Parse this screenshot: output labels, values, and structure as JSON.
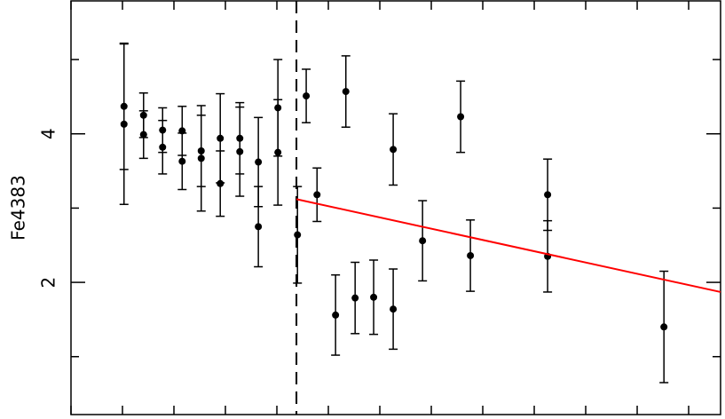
{
  "chart_data": {
    "type": "scatter",
    "y_label": "Fe4383",
    "xlim": [
      0,
      12.62
    ],
    "ylim": [
      0.22,
      5.79
    ],
    "xticks": [
      0,
      1,
      2,
      3,
      4,
      5,
      6,
      7,
      8,
      9,
      10,
      11,
      12
    ],
    "yticks": [
      2,
      4
    ],
    "yminorticks": [
      1,
      3,
      5
    ],
    "vline": 4.38,
    "series": [
      {
        "color": "#000000",
        "x": [
          1.03,
          1.03,
          1.41,
          1.41,
          1.78,
          1.78,
          2.16,
          2.16,
          2.53,
          2.53,
          2.9,
          2.9,
          3.28,
          3.28,
          3.64,
          3.64,
          4.02,
          4.02,
          4.4,
          4.57,
          4.78,
          5.14,
          5.34,
          5.52,
          5.88,
          6.26,
          6.26,
          6.83,
          7.57,
          7.76,
          9.26,
          9.26,
          11.52
        ],
        "values": [
          4.37,
          4.13,
          4.25,
          3.99,
          4.05,
          3.82,
          4.04,
          3.63,
          3.77,
          3.67,
          3.94,
          3.33,
          3.94,
          3.76,
          3.62,
          2.75,
          4.35,
          3.75,
          2.64,
          4.51,
          3.18,
          1.56,
          4.57,
          1.79,
          1.8,
          3.79,
          1.64,
          2.56,
          4.23,
          2.36,
          3.18,
          2.35,
          1.4
        ],
        "errors": [
          0.85,
          1.08,
          0.3,
          0.32,
          0.3,
          0.36,
          0.33,
          0.38,
          0.48,
          0.71,
          0.6,
          0.44,
          0.48,
          0.6,
          0.6,
          0.54,
          0.65,
          0.71,
          0.65,
          0.36,
          0.36,
          0.54,
          0.48,
          0.48,
          0.5,
          0.48,
          0.54,
          0.54,
          0.48,
          0.48,
          0.48,
          0.48,
          0.75
        ]
      }
    ],
    "fit": {
      "color": "#ff0000",
      "x": [
        4.38,
        12.62
      ],
      "y": [
        3.12,
        1.87
      ]
    }
  }
}
